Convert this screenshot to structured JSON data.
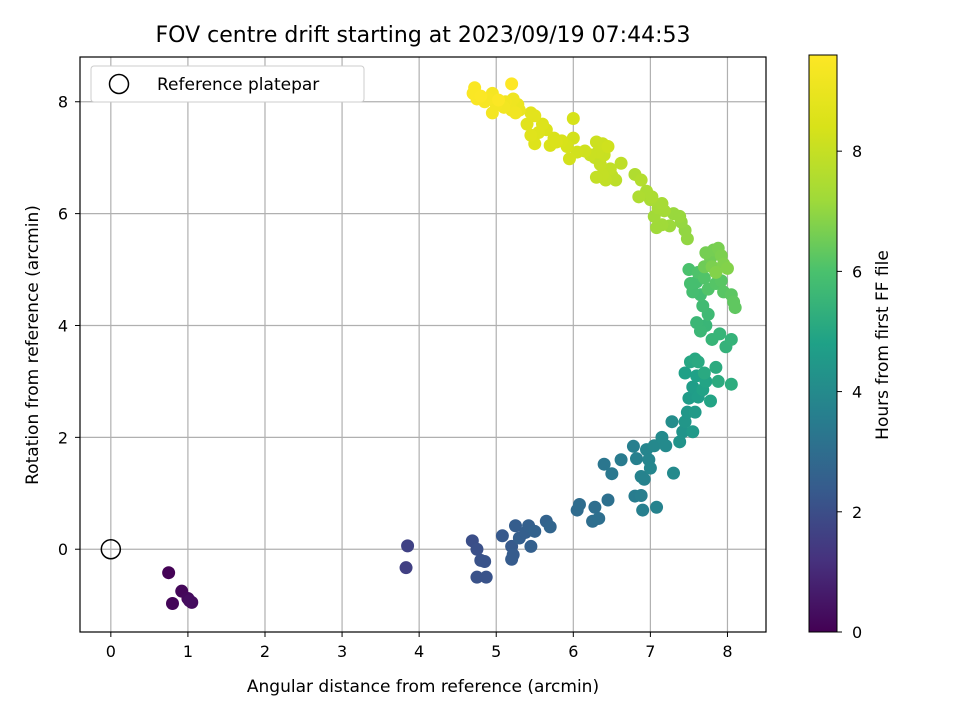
{
  "chart_data": {
    "type": "scatter",
    "title": "FOV centre drift starting at 2023/09/19 07:44:53",
    "xlabel": "Angular distance from reference (arcmin)",
    "ylabel": "Rotation from reference (arcmin)",
    "xlim": [
      -0.4,
      8.5
    ],
    "ylim": [
      -1.48,
      8.8
    ],
    "xticks": [
      0,
      1,
      2,
      3,
      4,
      5,
      6,
      7,
      8
    ],
    "yticks": [
      0,
      2,
      4,
      6,
      8
    ],
    "grid": true,
    "legend": {
      "position": "top-left",
      "entries": [
        "Reference platepar"
      ]
    },
    "reference_point": {
      "name": "Reference platepar",
      "x": 0,
      "y": 0
    },
    "colorbar": {
      "label": "Hours from first FF file",
      "range": [
        0,
        9.6
      ],
      "ticks": [
        0,
        2,
        4,
        6,
        8
      ],
      "colormap": "viridis"
    },
    "points": [
      {
        "x": 0.75,
        "y": -0.42,
        "c": 0.05
      },
      {
        "x": 0.8,
        "y": -0.97,
        "c": 0.1
      },
      {
        "x": 0.92,
        "y": -0.75,
        "c": 0.15
      },
      {
        "x": 1.0,
        "y": -0.88,
        "c": 0.2
      },
      {
        "x": 1.05,
        "y": -0.95,
        "c": 0.25
      },
      {
        "x": 1.02,
        "y": -0.92,
        "c": 0.3
      },
      {
        "x": 3.83,
        "y": -0.33,
        "c": 1.6
      },
      {
        "x": 3.85,
        "y": 0.06,
        "c": 1.65
      },
      {
        "x": 4.69,
        "y": 0.15,
        "c": 2.0
      },
      {
        "x": 4.75,
        "y": 0.0,
        "c": 2.05
      },
      {
        "x": 4.8,
        "y": -0.2,
        "c": 2.1
      },
      {
        "x": 4.85,
        "y": -0.22,
        "c": 2.15
      },
      {
        "x": 4.75,
        "y": -0.5,
        "c": 2.1
      },
      {
        "x": 4.87,
        "y": -0.5,
        "c": 2.15
      },
      {
        "x": 5.08,
        "y": 0.24,
        "c": 2.3
      },
      {
        "x": 5.2,
        "y": 0.05,
        "c": 2.35
      },
      {
        "x": 5.22,
        "y": -0.1,
        "c": 2.4
      },
      {
        "x": 5.2,
        "y": -0.18,
        "c": 2.4
      },
      {
        "x": 5.25,
        "y": 0.42,
        "c": 2.45
      },
      {
        "x": 5.3,
        "y": 0.2,
        "c": 2.5
      },
      {
        "x": 5.38,
        "y": 0.3,
        "c": 2.5
      },
      {
        "x": 5.42,
        "y": 0.42,
        "c": 2.55
      },
      {
        "x": 5.45,
        "y": 0.05,
        "c": 2.55
      },
      {
        "x": 5.5,
        "y": 0.32,
        "c": 2.6
      },
      {
        "x": 5.65,
        "y": 0.5,
        "c": 2.65
      },
      {
        "x": 5.7,
        "y": 0.4,
        "c": 2.7
      },
      {
        "x": 6.05,
        "y": 0.7,
        "c": 2.9
      },
      {
        "x": 6.08,
        "y": 0.8,
        "c": 2.95
      },
      {
        "x": 6.25,
        "y": 0.5,
        "c": 3.0
      },
      {
        "x": 6.28,
        "y": 0.75,
        "c": 3.0
      },
      {
        "x": 6.33,
        "y": 0.55,
        "c": 3.05
      },
      {
        "x": 6.45,
        "y": 0.88,
        "c": 3.1
      },
      {
        "x": 6.4,
        "y": 1.52,
        "c": 3.3
      },
      {
        "x": 6.5,
        "y": 1.35,
        "c": 3.35
      },
      {
        "x": 6.62,
        "y": 1.6,
        "c": 3.45
      },
      {
        "x": 6.78,
        "y": 1.84,
        "c": 3.6
      },
      {
        "x": 6.82,
        "y": 1.62,
        "c": 3.65
      },
      {
        "x": 6.8,
        "y": 0.95,
        "c": 3.5
      },
      {
        "x": 6.88,
        "y": 0.96,
        "c": 3.55
      },
      {
        "x": 6.9,
        "y": 0.7,
        "c": 3.6
      },
      {
        "x": 6.88,
        "y": 1.3,
        "c": 3.7
      },
      {
        "x": 6.92,
        "y": 1.25,
        "c": 3.7
      },
      {
        "x": 6.95,
        "y": 1.78,
        "c": 3.8
      },
      {
        "x": 6.98,
        "y": 1.6,
        "c": 3.8
      },
      {
        "x": 7.0,
        "y": 1.45,
        "c": 3.85
      },
      {
        "x": 7.05,
        "y": 1.85,
        "c": 3.9
      },
      {
        "x": 7.08,
        "y": 0.75,
        "c": 3.7
      },
      {
        "x": 7.15,
        "y": 2.0,
        "c": 4.0
      },
      {
        "x": 7.2,
        "y": 1.85,
        "c": 4.0
      },
      {
        "x": 7.3,
        "y": 1.36,
        "c": 4.0
      },
      {
        "x": 7.28,
        "y": 2.28,
        "c": 4.1
      },
      {
        "x": 7.38,
        "y": 1.92,
        "c": 4.3
      },
      {
        "x": 7.42,
        "y": 2.1,
        "c": 4.35
      },
      {
        "x": 7.45,
        "y": 2.28,
        "c": 4.4
      },
      {
        "x": 7.48,
        "y": 2.45,
        "c": 4.45
      },
      {
        "x": 7.55,
        "y": 2.1,
        "c": 4.5
      },
      {
        "x": 7.58,
        "y": 2.45,
        "c": 4.55
      },
      {
        "x": 7.5,
        "y": 2.7,
        "c": 4.6
      },
      {
        "x": 7.55,
        "y": 2.9,
        "c": 4.65
      },
      {
        "x": 7.62,
        "y": 2.72,
        "c": 4.7
      },
      {
        "x": 7.45,
        "y": 3.15,
        "c": 4.75
      },
      {
        "x": 7.6,
        "y": 3.1,
        "c": 4.8
      },
      {
        "x": 7.68,
        "y": 2.85,
        "c": 4.85
      },
      {
        "x": 7.72,
        "y": 3.0,
        "c": 4.9
      },
      {
        "x": 7.78,
        "y": 2.65,
        "c": 4.9
      },
      {
        "x": 7.52,
        "y": 3.35,
        "c": 5.0
      },
      {
        "x": 7.58,
        "y": 3.4,
        "c": 5.05
      },
      {
        "x": 7.62,
        "y": 3.35,
        "c": 5.1
      },
      {
        "x": 7.7,
        "y": 3.15,
        "c": 5.1
      },
      {
        "x": 7.85,
        "y": 3.25,
        "c": 5.15
      },
      {
        "x": 7.88,
        "y": 3.0,
        "c": 5.15
      },
      {
        "x": 8.05,
        "y": 2.95,
        "c": 5.2
      },
      {
        "x": 7.98,
        "y": 3.62,
        "c": 5.4
      },
      {
        "x": 8.05,
        "y": 3.75,
        "c": 5.45
      },
      {
        "x": 7.9,
        "y": 3.85,
        "c": 5.5
      },
      {
        "x": 7.8,
        "y": 3.75,
        "c": 5.5
      },
      {
        "x": 7.72,
        "y": 4.0,
        "c": 5.55
      },
      {
        "x": 7.65,
        "y": 3.9,
        "c": 5.6
      },
      {
        "x": 7.6,
        "y": 4.05,
        "c": 5.6
      },
      {
        "x": 7.75,
        "y": 4.2,
        "c": 5.7
      },
      {
        "x": 7.68,
        "y": 4.35,
        "c": 5.75
      },
      {
        "x": 7.65,
        "y": 4.55,
        "c": 5.8
      },
      {
        "x": 7.55,
        "y": 4.6,
        "c": 5.85
      },
      {
        "x": 7.6,
        "y": 4.78,
        "c": 5.9
      },
      {
        "x": 7.52,
        "y": 4.75,
        "c": 5.9
      },
      {
        "x": 7.5,
        "y": 5.0,
        "c": 6.0
      },
      {
        "x": 7.62,
        "y": 4.95,
        "c": 6.05
      },
      {
        "x": 7.7,
        "y": 4.85,
        "c": 6.1
      },
      {
        "x": 7.75,
        "y": 4.65,
        "c": 6.1
      },
      {
        "x": 7.85,
        "y": 4.75,
        "c": 6.15
      },
      {
        "x": 7.92,
        "y": 4.8,
        "c": 6.2
      },
      {
        "x": 7.95,
        "y": 4.6,
        "c": 6.2
      },
      {
        "x": 8.05,
        "y": 4.55,
        "c": 6.25
      },
      {
        "x": 8.08,
        "y": 4.42,
        "c": 6.3
      },
      {
        "x": 8.1,
        "y": 4.32,
        "c": 6.3
      },
      {
        "x": 7.7,
        "y": 5.05,
        "c": 6.5
      },
      {
        "x": 7.78,
        "y": 5.2,
        "c": 6.55
      },
      {
        "x": 7.72,
        "y": 5.3,
        "c": 6.6
      },
      {
        "x": 7.82,
        "y": 5.35,
        "c": 6.6
      },
      {
        "x": 7.88,
        "y": 5.38,
        "c": 6.65
      },
      {
        "x": 7.92,
        "y": 5.25,
        "c": 6.7
      },
      {
        "x": 7.8,
        "y": 5.05,
        "c": 6.7
      },
      {
        "x": 7.95,
        "y": 5.1,
        "c": 6.75
      },
      {
        "x": 8.0,
        "y": 5.02,
        "c": 6.8
      },
      {
        "x": 7.85,
        "y": 4.95,
        "c": 6.8
      },
      {
        "x": 7.48,
        "y": 5.55,
        "c": 7.0
      },
      {
        "x": 7.45,
        "y": 5.7,
        "c": 7.0
      },
      {
        "x": 7.4,
        "y": 5.85,
        "c": 7.05
      },
      {
        "x": 7.3,
        "y": 6.0,
        "c": 7.1
      },
      {
        "x": 7.38,
        "y": 5.95,
        "c": 7.1
      },
      {
        "x": 7.25,
        "y": 5.78,
        "c": 7.15
      },
      {
        "x": 7.15,
        "y": 5.8,
        "c": 7.2
      },
      {
        "x": 7.08,
        "y": 5.75,
        "c": 7.2
      },
      {
        "x": 7.05,
        "y": 5.95,
        "c": 7.25
      },
      {
        "x": 7.1,
        "y": 6.1,
        "c": 7.3
      },
      {
        "x": 7.18,
        "y": 6.05,
        "c": 7.3
      },
      {
        "x": 7.15,
        "y": 6.18,
        "c": 7.35
      },
      {
        "x": 7.0,
        "y": 6.25,
        "c": 7.4
      },
      {
        "x": 6.95,
        "y": 6.4,
        "c": 7.45
      },
      {
        "x": 7.02,
        "y": 6.3,
        "c": 7.45
      },
      {
        "x": 6.85,
        "y": 6.3,
        "c": 7.5
      },
      {
        "x": 6.8,
        "y": 6.7,
        "c": 7.55
      },
      {
        "x": 6.88,
        "y": 6.6,
        "c": 7.6
      },
      {
        "x": 6.55,
        "y": 6.6,
        "c": 7.8
      },
      {
        "x": 6.62,
        "y": 6.9,
        "c": 7.85
      },
      {
        "x": 6.5,
        "y": 6.68,
        "c": 7.85
      },
      {
        "x": 6.48,
        "y": 6.8,
        "c": 7.9
      },
      {
        "x": 6.42,
        "y": 6.6,
        "c": 7.9
      },
      {
        "x": 6.38,
        "y": 6.7,
        "c": 7.95
      },
      {
        "x": 6.3,
        "y": 6.65,
        "c": 7.95
      },
      {
        "x": 6.35,
        "y": 6.88,
        "c": 8.0
      },
      {
        "x": 6.28,
        "y": 7.0,
        "c": 8.0
      },
      {
        "x": 6.4,
        "y": 7.05,
        "c": 8.05
      },
      {
        "x": 6.32,
        "y": 7.1,
        "c": 8.1
      },
      {
        "x": 6.22,
        "y": 7.05,
        "c": 8.1
      },
      {
        "x": 6.3,
        "y": 7.28,
        "c": 8.15
      },
      {
        "x": 6.38,
        "y": 7.25,
        "c": 8.15
      },
      {
        "x": 6.45,
        "y": 7.2,
        "c": 8.2
      },
      {
        "x": 6.15,
        "y": 7.12,
        "c": 8.2
      },
      {
        "x": 6.05,
        "y": 7.1,
        "c": 8.25
      },
      {
        "x": 5.95,
        "y": 6.98,
        "c": 8.3
      },
      {
        "x": 6.0,
        "y": 7.35,
        "c": 8.3
      },
      {
        "x": 6.0,
        "y": 7.7,
        "c": 8.35
      },
      {
        "x": 5.92,
        "y": 7.2,
        "c": 8.35
      },
      {
        "x": 5.85,
        "y": 7.3,
        "c": 8.4
      },
      {
        "x": 5.75,
        "y": 7.35,
        "c": 8.45
      },
      {
        "x": 5.7,
        "y": 7.22,
        "c": 8.45
      },
      {
        "x": 5.78,
        "y": 7.28,
        "c": 8.5
      },
      {
        "x": 5.65,
        "y": 7.5,
        "c": 8.5
      },
      {
        "x": 5.6,
        "y": 7.6,
        "c": 8.55
      },
      {
        "x": 5.55,
        "y": 7.45,
        "c": 8.6
      },
      {
        "x": 5.5,
        "y": 7.25,
        "c": 8.6
      },
      {
        "x": 5.45,
        "y": 7.4,
        "c": 8.65
      },
      {
        "x": 5.4,
        "y": 7.6,
        "c": 8.7
      },
      {
        "x": 5.5,
        "y": 7.75,
        "c": 8.75
      },
      {
        "x": 5.45,
        "y": 7.8,
        "c": 8.75
      },
      {
        "x": 5.3,
        "y": 7.85,
        "c": 9.0
      },
      {
        "x": 5.28,
        "y": 7.95,
        "c": 9.05
      },
      {
        "x": 5.2,
        "y": 7.85,
        "c": 9.1
      },
      {
        "x": 5.22,
        "y": 8.05,
        "c": 9.15
      },
      {
        "x": 5.18,
        "y": 7.95,
        "c": 9.15
      },
      {
        "x": 5.25,
        "y": 7.8,
        "c": 9.2
      },
      {
        "x": 5.12,
        "y": 8.0,
        "c": 9.2
      },
      {
        "x": 5.1,
        "y": 7.9,
        "c": 9.25
      },
      {
        "x": 5.0,
        "y": 7.95,
        "c": 9.3
      },
      {
        "x": 4.95,
        "y": 7.8,
        "c": 9.3
      },
      {
        "x": 4.95,
        "y": 8.15,
        "c": 9.35
      },
      {
        "x": 4.9,
        "y": 8.05,
        "c": 9.4
      },
      {
        "x": 4.85,
        "y": 8.0,
        "c": 9.4
      },
      {
        "x": 4.75,
        "y": 8.05,
        "c": 9.45
      },
      {
        "x": 4.7,
        "y": 8.15,
        "c": 9.5
      },
      {
        "x": 4.72,
        "y": 8.25,
        "c": 9.5
      },
      {
        "x": 4.8,
        "y": 8.1,
        "c": 9.55
      },
      {
        "x": 5.03,
        "y": 8.03,
        "c": 9.55
      },
      {
        "x": 5.2,
        "y": 8.32,
        "c": 9.6
      }
    ]
  }
}
